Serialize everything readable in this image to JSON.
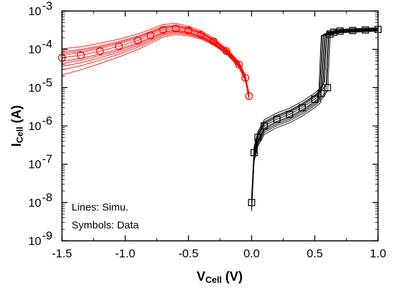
{
  "chart_data": {
    "type": "scatter",
    "title": "",
    "xlabel": {
      "main": "V",
      "sub": "Cell",
      "unit": "(V)"
    },
    "ylabel": {
      "main": "I",
      "sub": "Cell",
      "unit": "(A)"
    },
    "xlim": [
      -1.5,
      1.0
    ],
    "ylim_log10": [
      -9,
      -3
    ],
    "yscale": "log",
    "grid": false,
    "x_ticks": [
      {
        "value": -1.5,
        "label": "-1.5"
      },
      {
        "value": -1.0,
        "label": "-1.0"
      },
      {
        "value": -0.5,
        "label": "-0.5"
      },
      {
        "value": 0.0,
        "label": "0.0"
      },
      {
        "value": 0.5,
        "label": "0.5"
      },
      {
        "value": 1.0,
        "label": "1.0"
      }
    ],
    "y_ticks": [
      {
        "exp": -9,
        "base": "10",
        "sup": "-9"
      },
      {
        "exp": -8,
        "base": "10",
        "sup": "-8"
      },
      {
        "exp": -7,
        "base": "10",
        "sup": "-7"
      },
      {
        "exp": -6,
        "base": "10",
        "sup": "-6"
      },
      {
        "exp": -5,
        "base": "10",
        "sup": "-5"
      },
      {
        "exp": -4,
        "base": "10",
        "sup": "-4"
      },
      {
        "exp": -3,
        "base": "10",
        "sup": "-3"
      }
    ],
    "annotations": [
      "Lines: Simu.",
      "Symbols: Data"
    ],
    "series": [
      {
        "marker": "circle",
        "color": "#ff0000",
        "x": [
          -1.5,
          -1.35,
          -1.2,
          -1.05,
          -0.9,
          -0.8,
          -0.7,
          -0.6,
          -0.5,
          -0.4,
          -0.3,
          -0.2,
          -0.1,
          -0.05,
          -0.02
        ],
        "y": [
          6e-05,
          7e-05,
          9e-05,
          0.00012,
          0.00017,
          0.00023,
          0.00032,
          0.00035,
          0.00031,
          0.00024,
          0.00016,
          9e-05,
          4e-05,
          1.8e-05,
          6e-06
        ]
      },
      {
        "marker": "square",
        "color": "#000000",
        "x": [
          0.0,
          0.02,
          0.05,
          0.1,
          0.2,
          0.3,
          0.4,
          0.5,
          0.55,
          0.6,
          0.62,
          0.65,
          0.7,
          0.8,
          0.9,
          1.0
        ],
        "y": [
          1e-08,
          2e-07,
          5e-07,
          1e-06,
          1.5e-06,
          2e-06,
          3e-06,
          5e-06,
          7e-06,
          1e-05,
          0.00025,
          0.00028,
          0.0003,
          0.00031,
          0.00032,
          0.00033
        ]
      }
    ]
  }
}
